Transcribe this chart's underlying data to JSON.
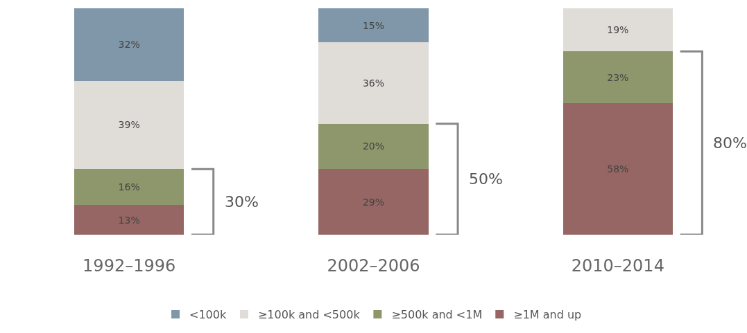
{
  "chart_data": {
    "type": "bar",
    "stacked": true,
    "categories": [
      "1992–1996",
      "2002–2006",
      "2010–2014"
    ],
    "series": [
      {
        "name": "≥1M and up",
        "color": "#956663",
        "values": [
          13,
          29,
          58
        ],
        "value_labels": [
          "13%",
          "29%",
          "58%"
        ]
      },
      {
        "name": "≥500k and <1M",
        "color": "#8e976b",
        "values": [
          16,
          20,
          23
        ],
        "value_labels": [
          "16%",
          "20%",
          "23%"
        ]
      },
      {
        "name": "≥100k and <500k",
        "color": "#e0ddd8",
        "values": [
          39,
          36,
          19
        ],
        "value_labels": [
          "39%",
          "36%",
          "19%"
        ]
      },
      {
        "name": "<100k",
        "color": "#7f97a8",
        "values": [
          32,
          15,
          null
        ],
        "value_labels": [
          "32%",
          "15%",
          null
        ]
      }
    ],
    "annotations": [
      "30%",
      "50%",
      "80%"
    ],
    "legend": "bottom",
    "tick_labels": "x"
  }
}
